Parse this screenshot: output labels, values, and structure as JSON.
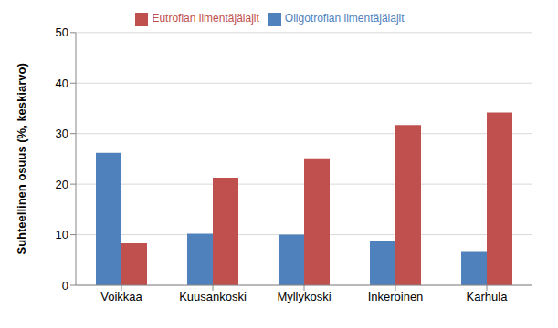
{
  "chart_data": {
    "type": "bar",
    "y_label": "Suhteellinen osuus (%, keskiarvo)",
    "categories": [
      "Voikkaa",
      "Kuusankoski",
      "Myllykoski",
      "Inkeroinen",
      "Karhula"
    ],
    "series": [
      {
        "name": "Oligotrofian ilmentäjälajit",
        "color": "#4f81bd",
        "values": [
          26.2,
          10.2,
          10.0,
          8.7,
          6.6
        ]
      },
      {
        "name": "Eutrofian ilmentäjälajit",
        "color": "#c0504d",
        "values": [
          8.3,
          21.3,
          25.1,
          31.7,
          34.2
        ]
      }
    ],
    "ylim": [
      0,
      50
    ],
    "yticks": [
      0,
      10,
      20,
      30,
      40,
      50
    ],
    "grid": true,
    "legend": "top"
  }
}
